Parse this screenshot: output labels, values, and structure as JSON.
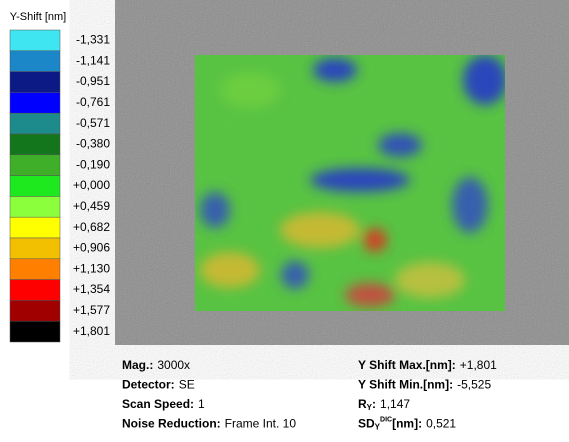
{
  "legend": {
    "title": "Y-Shift [nm]",
    "entries": [
      {
        "label": "-1,331",
        "color": "#3fe6f2"
      },
      {
        "label": "-1,141",
        "color": "#1b86c8"
      },
      {
        "label": "-0,951",
        "color": "#0c1a86"
      },
      {
        "label": "-0,761",
        "color": "#0000ff"
      },
      {
        "label": "-0,571",
        "color": "#1d8a8c"
      },
      {
        "label": "-0,380",
        "color": "#14761c"
      },
      {
        "label": "-0,190",
        "color": "#3fae28"
      },
      {
        "label": "+0,000",
        "color": "#1ee81e"
      },
      {
        "label": "+0,459",
        "color": "#8cff3c"
      },
      {
        "label": "+0,682",
        "color": "#ffff00"
      },
      {
        "label": "+0,906",
        "color": "#f2c000"
      },
      {
        "label": "+1,130",
        "color": "#ff8000"
      },
      {
        "label": "+1,354",
        "color": "#ff0000"
      },
      {
        "label": "+1,577",
        "color": "#a00000"
      },
      {
        "label": "+1,801",
        "color": "#000000"
      }
    ]
  },
  "info": {
    "left": [
      {
        "key": "Mag.:",
        "value": "3000x"
      },
      {
        "key": "Detector:",
        "value": "SE"
      },
      {
        "key": "Scan Speed:",
        "value": "1"
      },
      {
        "key": "Noise Reduction:",
        "value": "Frame Int. 10"
      }
    ],
    "right": [
      {
        "key": "Y Shift Max.[nm]:",
        "value": "+1,801"
      },
      {
        "key": "Y Shift Min.[nm]:",
        "value": "-5,525"
      },
      {
        "key": "R",
        "sub": "Y",
        "suffix": ":",
        "value": "1,147"
      },
      {
        "key": "SD",
        "sub": "Y",
        "sup": "DIC",
        "suffix": "[nm]:",
        "value": "0,521"
      }
    ]
  }
}
